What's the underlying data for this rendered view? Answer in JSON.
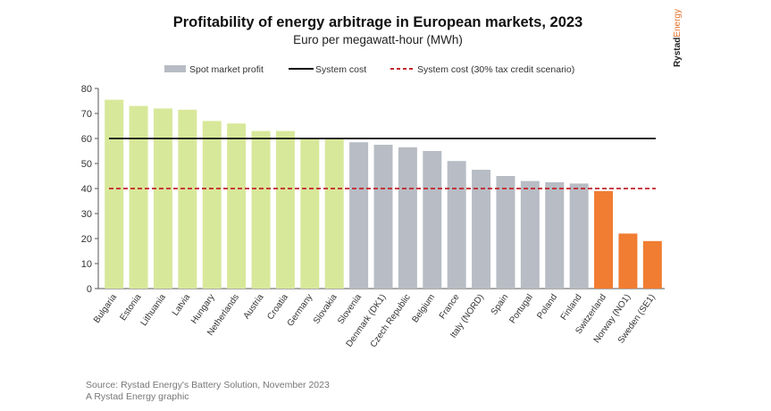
{
  "header": {
    "title": "Profitability of energy arbitrage in European markets, 2023",
    "subtitle": "Euro per megawatt-hour (MWh)",
    "brand_primary": "Rystad",
    "brand_secondary": "Energy"
  },
  "legend": {
    "spot": "Spot market profit",
    "system": "System cost",
    "tax": "System cost (30% tax credit scenario)"
  },
  "footer": {
    "source": "Source: Rystad Energy's Battery Solution, November 2023",
    "credit": "A Rystad Energy graphic"
  },
  "colors": {
    "green": "#d8e89a",
    "gray": "#b8bcc4",
    "orange": "#f07d32",
    "system_line": "#111111",
    "tax_line": "#c0232b",
    "brand_accent": "#e8732c"
  },
  "chart_data": {
    "type": "bar",
    "title": "Profitability of energy arbitrage in European markets, 2023",
    "subtitle": "Euro per megawatt-hour (MWh)",
    "ylabel": "Euro per megawatt-hour (MWh)",
    "ylim": [
      0,
      80
    ],
    "yticks": [
      0,
      10,
      20,
      30,
      40,
      50,
      60,
      70,
      80
    ],
    "categories": [
      "Bulgaria",
      "Estonia",
      "Lithuania",
      "Latvia",
      "Hungary",
      "Netherlands",
      "Austria",
      "Croatia",
      "Germany",
      "Slovakia",
      "Slovenia",
      "Denmark (DK1)",
      "Czech Republic",
      "Belgium",
      "France",
      "Italy (NORD)",
      "Spain",
      "Portugal",
      "Poland",
      "Finland",
      "Switzerland",
      "Norway (NO1)",
      "Sweden (SE1)"
    ],
    "values": [
      75.5,
      73,
      72,
      71.5,
      67,
      66,
      63,
      63,
      60,
      60,
      58.5,
      57.5,
      56.5,
      55,
      51,
      47.5,
      45,
      43,
      42.5,
      42,
      39,
      22,
      19
    ],
    "color_groups": [
      "green",
      "green",
      "green",
      "green",
      "green",
      "green",
      "green",
      "green",
      "green",
      "green",
      "gray",
      "gray",
      "gray",
      "gray",
      "gray",
      "gray",
      "gray",
      "gray",
      "gray",
      "gray",
      "orange",
      "orange",
      "orange"
    ],
    "reference_lines": [
      {
        "name": "System cost",
        "value": 60,
        "style": "solid"
      },
      {
        "name": "System cost (30% tax credit scenario)",
        "value": 40,
        "style": "dashed"
      }
    ],
    "legend_position": "top",
    "grid": false
  }
}
